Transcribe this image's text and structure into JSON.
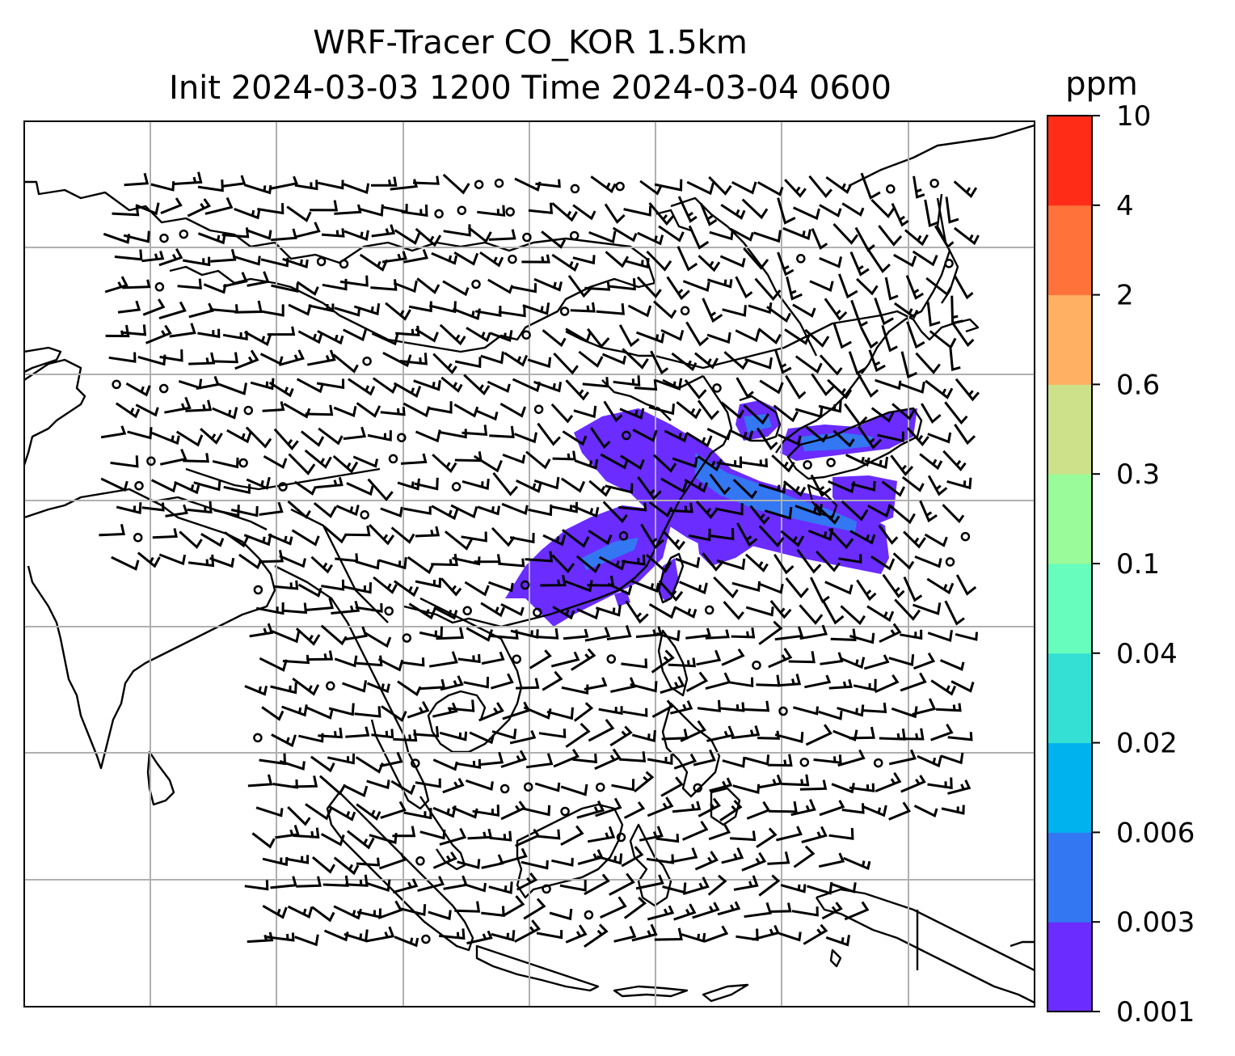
{
  "title_line1": "WRF-Tracer CO_KOR 1.5km",
  "title_line2": "Init 2024-03-03 1200 Time 2024-03-04 0600",
  "colorbar": {
    "unit": "ppm",
    "levels": [
      "0.001",
      "0.003",
      "0.006",
      "0.02",
      "0.04",
      "0.1",
      "0.3",
      "0.6",
      "2",
      "4",
      "10"
    ],
    "colors": [
      "#6a2cff",
      "#3377f2",
      "#00b2ee",
      "#33e0d3",
      "#66fdbd",
      "#99fb99",
      "#cce18a",
      "#ffb062",
      "#ff733b",
      "#ff2d17"
    ]
  },
  "plume_color": "#6a2cff",
  "plume_core_color": "#3377f2",
  "calm_wind_marker": "circle",
  "gridline_color": "#b0b0b0"
}
